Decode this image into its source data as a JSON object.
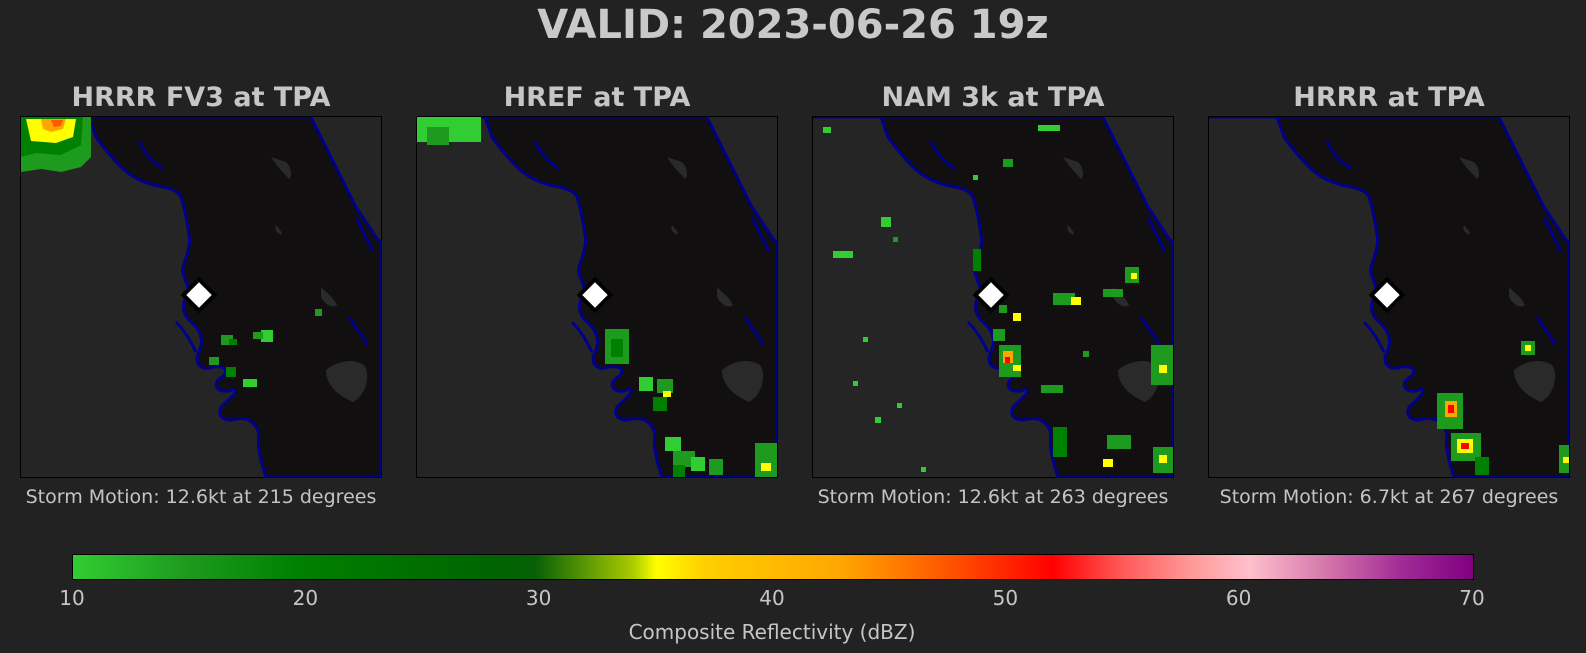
{
  "title": "VALID: 2023-06-26 19z",
  "panels": [
    {
      "title": "HRRR FV3 at TPA",
      "storm_motion": "Storm Motion: 12.6kt at 215 degrees"
    },
    {
      "title": "HREF at TPA",
      "storm_motion": ""
    },
    {
      "title": "NAM 3k at TPA",
      "storm_motion": "Storm Motion: 12.6kt at 263 degrees"
    },
    {
      "title": "HRRR at TPA",
      "storm_motion": "Storm Motion: 6.7kt at 267 degrees"
    }
  ],
  "colorbar": {
    "label": "Composite Reflectivity (dBZ)",
    "ticks": [
      "10",
      "20",
      "30",
      "40",
      "50",
      "60",
      "70"
    ],
    "range": [
      10,
      70
    ]
  },
  "colors": {
    "background": "#222222",
    "ocean": "#262525",
    "land": "#110f0f",
    "coast": "#00008b",
    "lakes": "#2a2a2a"
  }
}
